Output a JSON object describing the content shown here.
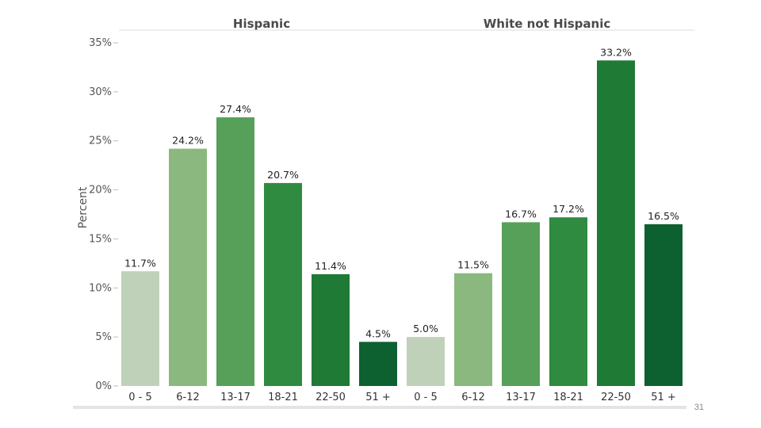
{
  "chart_data": {
    "type": "bar",
    "ylabel": "Percent",
    "ylim": [
      0,
      35
    ],
    "yticks": [
      0,
      5,
      10,
      15,
      20,
      25,
      30,
      35
    ],
    "ytick_labels": [
      "0%",
      "5%",
      "10%",
      "15%",
      "20%",
      "25%",
      "30%",
      "35%"
    ],
    "grid": false,
    "categories": [
      "0 - 5",
      "6-12",
      "13-17",
      "18-21",
      "22-50",
      "51 +"
    ],
    "colors": [
      "#bfd1b8",
      "#8bb87e",
      "#56a05a",
      "#2e8b3f",
      "#1e7a35",
      "#0d6130"
    ],
    "panels": [
      {
        "title": "Hispanic",
        "values": [
          11.7,
          24.2,
          27.4,
          20.7,
          11.4,
          4.5
        ],
        "labels": [
          "11.7%",
          "24.2%",
          "27.4%",
          "20.7%",
          "11.4%",
          "4.5%"
        ]
      },
      {
        "title": "White not Hispanic",
        "values": [
          5.0,
          11.5,
          16.7,
          17.2,
          33.2,
          16.5
        ],
        "labels": [
          "5.0%",
          "11.5%",
          "16.7%",
          "17.2%",
          "33.2%",
          "16.5%"
        ]
      }
    ]
  },
  "footer": {
    "page_number": "31"
  }
}
